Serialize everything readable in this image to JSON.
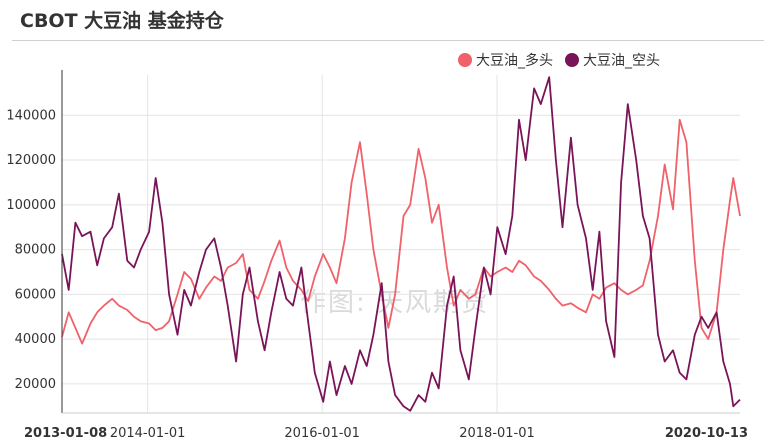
{
  "header": {
    "title": "CBOT 大豆油 基金持仓"
  },
  "watermark": "作图: 天风期货",
  "chart_data": {
    "type": "line",
    "title": "CBOT 大豆油 基金持仓",
    "xlabel": "",
    "ylabel": "",
    "x_range": [
      "2013-01-08",
      "2020-10-13"
    ],
    "ylim": [
      7000,
      158000
    ],
    "y_ticks": [
      20000,
      40000,
      60000,
      80000,
      100000,
      120000,
      140000
    ],
    "x_ticks": [
      {
        "date": "2013-01-08",
        "label": "2013-01-08",
        "edge": true
      },
      {
        "date": "2014-01-01",
        "label": "2014-01-01",
        "edge": false
      },
      {
        "date": "2016-01-01",
        "label": "2016-01-01",
        "edge": false
      },
      {
        "date": "2018-01-01",
        "label": "2018-01-01",
        "edge": false
      },
      {
        "date": "2020-10-13",
        "label": "2020-10-13",
        "edge": true
      }
    ],
    "grid": true,
    "legend_position": "top-right",
    "series": [
      {
        "name": "大豆油_多头",
        "color": "#f0616a",
        "points": [
          [
            "2013-01-08",
            41000
          ],
          [
            "2013-02-05",
            52000
          ],
          [
            "2013-03-05",
            45000
          ],
          [
            "2013-04-02",
            38000
          ],
          [
            "2013-05-07",
            47000
          ],
          [
            "2013-06-04",
            52000
          ],
          [
            "2013-07-02",
            55000
          ],
          [
            "2013-08-06",
            58000
          ],
          [
            "2013-09-03",
            55000
          ],
          [
            "2013-10-08",
            53000
          ],
          [
            "2013-11-05",
            50000
          ],
          [
            "2013-12-03",
            48000
          ],
          [
            "2014-01-07",
            47000
          ],
          [
            "2014-02-04",
            44000
          ],
          [
            "2014-03-04",
            45000
          ],
          [
            "2014-04-01",
            48000
          ],
          [
            "2014-05-06",
            60000
          ],
          [
            "2014-06-03",
            70000
          ],
          [
            "2014-07-01",
            67000
          ],
          [
            "2014-08-05",
            58000
          ],
          [
            "2014-09-02",
            63000
          ],
          [
            "2014-10-07",
            68000
          ],
          [
            "2014-11-04",
            66000
          ],
          [
            "2014-12-02",
            72000
          ],
          [
            "2015-01-06",
            74000
          ],
          [
            "2015-02-03",
            78000
          ],
          [
            "2015-03-03",
            62000
          ],
          [
            "2015-04-07",
            58000
          ],
          [
            "2015-05-05",
            66000
          ],
          [
            "2015-06-02",
            75000
          ],
          [
            "2015-07-07",
            84000
          ],
          [
            "2015-08-04",
            72000
          ],
          [
            "2015-09-01",
            66000
          ],
          [
            "2015-10-06",
            62000
          ],
          [
            "2015-11-03",
            57000
          ],
          [
            "2015-12-01",
            68000
          ],
          [
            "2016-01-05",
            78000
          ],
          [
            "2016-02-02",
            72000
          ],
          [
            "2016-03-01",
            65000
          ],
          [
            "2016-04-05",
            85000
          ],
          [
            "2016-05-03",
            110000
          ],
          [
            "2016-06-07",
            128000
          ],
          [
            "2016-07-05",
            105000
          ],
          [
            "2016-08-02",
            80000
          ],
          [
            "2016-09-06",
            60000
          ],
          [
            "2016-10-04",
            45000
          ],
          [
            "2016-11-01",
            60000
          ],
          [
            "2016-12-06",
            95000
          ],
          [
            "2017-01-03",
            100000
          ],
          [
            "2017-02-07",
            125000
          ],
          [
            "2017-03-07",
            112000
          ],
          [
            "2017-04-04",
            92000
          ],
          [
            "2017-05-02",
            100000
          ],
          [
            "2017-06-06",
            72000
          ],
          [
            "2017-07-04",
            55000
          ],
          [
            "2017-08-01",
            62000
          ],
          [
            "2017-09-05",
            58000
          ],
          [
            "2017-10-03",
            60000
          ],
          [
            "2017-11-07",
            72000
          ],
          [
            "2017-12-05",
            68000
          ],
          [
            "2018-01-02",
            70000
          ],
          [
            "2018-02-06",
            72000
          ],
          [
            "2018-03-06",
            70000
          ],
          [
            "2018-04-03",
            75000
          ],
          [
            "2018-05-01",
            73000
          ],
          [
            "2018-06-05",
            68000
          ],
          [
            "2018-07-03",
            66000
          ],
          [
            "2018-08-07",
            62000
          ],
          [
            "2018-09-04",
            58000
          ],
          [
            "2018-10-02",
            55000
          ],
          [
            "2018-11-06",
            56000
          ],
          [
            "2018-12-04",
            54000
          ],
          [
            "2019-01-08",
            52000
          ],
          [
            "2019-02-05",
            60000
          ],
          [
            "2019-03-05",
            58000
          ],
          [
            "2019-04-02",
            63000
          ],
          [
            "2019-05-07",
            65000
          ],
          [
            "2019-06-04",
            62000
          ],
          [
            "2019-07-02",
            60000
          ],
          [
            "2019-08-06",
            62000
          ],
          [
            "2019-09-03",
            64000
          ],
          [
            "2019-10-01",
            75000
          ],
          [
            "2019-11-05",
            95000
          ],
          [
            "2019-12-03",
            118000
          ],
          [
            "2020-01-07",
            98000
          ],
          [
            "2020-02-04",
            138000
          ],
          [
            "2020-03-03",
            128000
          ],
          [
            "2020-04-07",
            75000
          ],
          [
            "2020-05-05",
            45000
          ],
          [
            "2020-06-02",
            40000
          ],
          [
            "2020-07-07",
            52000
          ],
          [
            "2020-08-04",
            80000
          ],
          [
            "2020-09-01",
            102000
          ],
          [
            "2020-09-15",
            112000
          ],
          [
            "2020-10-13",
            95000
          ]
        ]
      },
      {
        "name": "大豆油_空头",
        "color": "#7a1459",
        "points": [
          [
            "2013-01-08",
            78000
          ],
          [
            "2013-02-05",
            62000
          ],
          [
            "2013-03-05",
            92000
          ],
          [
            "2013-04-02",
            86000
          ],
          [
            "2013-05-07",
            88000
          ],
          [
            "2013-06-04",
            73000
          ],
          [
            "2013-07-02",
            85000
          ],
          [
            "2013-08-06",
            90000
          ],
          [
            "2013-09-03",
            105000
          ],
          [
            "2013-10-08",
            75000
          ],
          [
            "2013-11-05",
            72000
          ],
          [
            "2013-12-03",
            80000
          ],
          [
            "2014-01-07",
            88000
          ],
          [
            "2014-02-04",
            112000
          ],
          [
            "2014-03-04",
            92000
          ],
          [
            "2014-04-01",
            60000
          ],
          [
            "2014-05-06",
            42000
          ],
          [
            "2014-06-03",
            62000
          ],
          [
            "2014-07-01",
            55000
          ],
          [
            "2014-08-05",
            70000
          ],
          [
            "2014-09-02",
            80000
          ],
          [
            "2014-10-07",
            85000
          ],
          [
            "2014-11-04",
            72000
          ],
          [
            "2014-12-02",
            55000
          ],
          [
            "2015-01-06",
            30000
          ],
          [
            "2015-02-03",
            60000
          ],
          [
            "2015-03-03",
            72000
          ],
          [
            "2015-04-07",
            48000
          ],
          [
            "2015-05-05",
            35000
          ],
          [
            "2015-06-02",
            52000
          ],
          [
            "2015-07-07",
            70000
          ],
          [
            "2015-08-04",
            58000
          ],
          [
            "2015-09-01",
            55000
          ],
          [
            "2015-10-06",
            72000
          ],
          [
            "2015-11-03",
            48000
          ],
          [
            "2015-12-01",
            25000
          ],
          [
            "2016-01-05",
            12000
          ],
          [
            "2016-02-02",
            30000
          ],
          [
            "2016-03-01",
            15000
          ],
          [
            "2016-04-05",
            28000
          ],
          [
            "2016-05-03",
            20000
          ],
          [
            "2016-06-07",
            35000
          ],
          [
            "2016-07-05",
            28000
          ],
          [
            "2016-08-02",
            42000
          ],
          [
            "2016-09-06",
            65000
          ],
          [
            "2016-10-04",
            30000
          ],
          [
            "2016-11-01",
            15000
          ],
          [
            "2016-12-06",
            10000
          ],
          [
            "2017-01-03",
            8000
          ],
          [
            "2017-02-07",
            15000
          ],
          [
            "2017-03-07",
            12000
          ],
          [
            "2017-04-04",
            25000
          ],
          [
            "2017-05-02",
            18000
          ],
          [
            "2017-06-06",
            55000
          ],
          [
            "2017-07-04",
            68000
          ],
          [
            "2017-08-01",
            35000
          ],
          [
            "2017-09-05",
            22000
          ],
          [
            "2017-10-03",
            45000
          ],
          [
            "2017-11-07",
            72000
          ],
          [
            "2017-12-05",
            60000
          ],
          [
            "2018-01-02",
            90000
          ],
          [
            "2018-02-06",
            78000
          ],
          [
            "2018-03-06",
            95000
          ],
          [
            "2018-04-03",
            138000
          ],
          [
            "2018-05-01",
            120000
          ],
          [
            "2018-06-05",
            152000
          ],
          [
            "2018-07-03",
            145000
          ],
          [
            "2018-08-07",
            157000
          ],
          [
            "2018-09-04",
            120000
          ],
          [
            "2018-10-02",
            90000
          ],
          [
            "2018-11-06",
            130000
          ],
          [
            "2018-12-04",
            100000
          ],
          [
            "2019-01-08",
            85000
          ],
          [
            "2019-02-05",
            62000
          ],
          [
            "2019-03-05",
            88000
          ],
          [
            "2019-04-02",
            48000
          ],
          [
            "2019-05-07",
            32000
          ],
          [
            "2019-06-04",
            110000
          ],
          [
            "2019-07-02",
            145000
          ],
          [
            "2019-08-06",
            120000
          ],
          [
            "2019-09-03",
            95000
          ],
          [
            "2019-10-01",
            85000
          ],
          [
            "2019-11-05",
            42000
          ],
          [
            "2019-12-03",
            30000
          ],
          [
            "2020-01-07",
            35000
          ],
          [
            "2020-02-04",
            25000
          ],
          [
            "2020-03-03",
            22000
          ],
          [
            "2020-04-07",
            42000
          ],
          [
            "2020-05-05",
            50000
          ],
          [
            "2020-06-02",
            45000
          ],
          [
            "2020-07-07",
            52000
          ],
          [
            "2020-08-04",
            30000
          ],
          [
            "2020-09-01",
            20000
          ],
          [
            "2020-09-15",
            10000
          ],
          [
            "2020-10-13",
            13000
          ]
        ]
      }
    ]
  }
}
